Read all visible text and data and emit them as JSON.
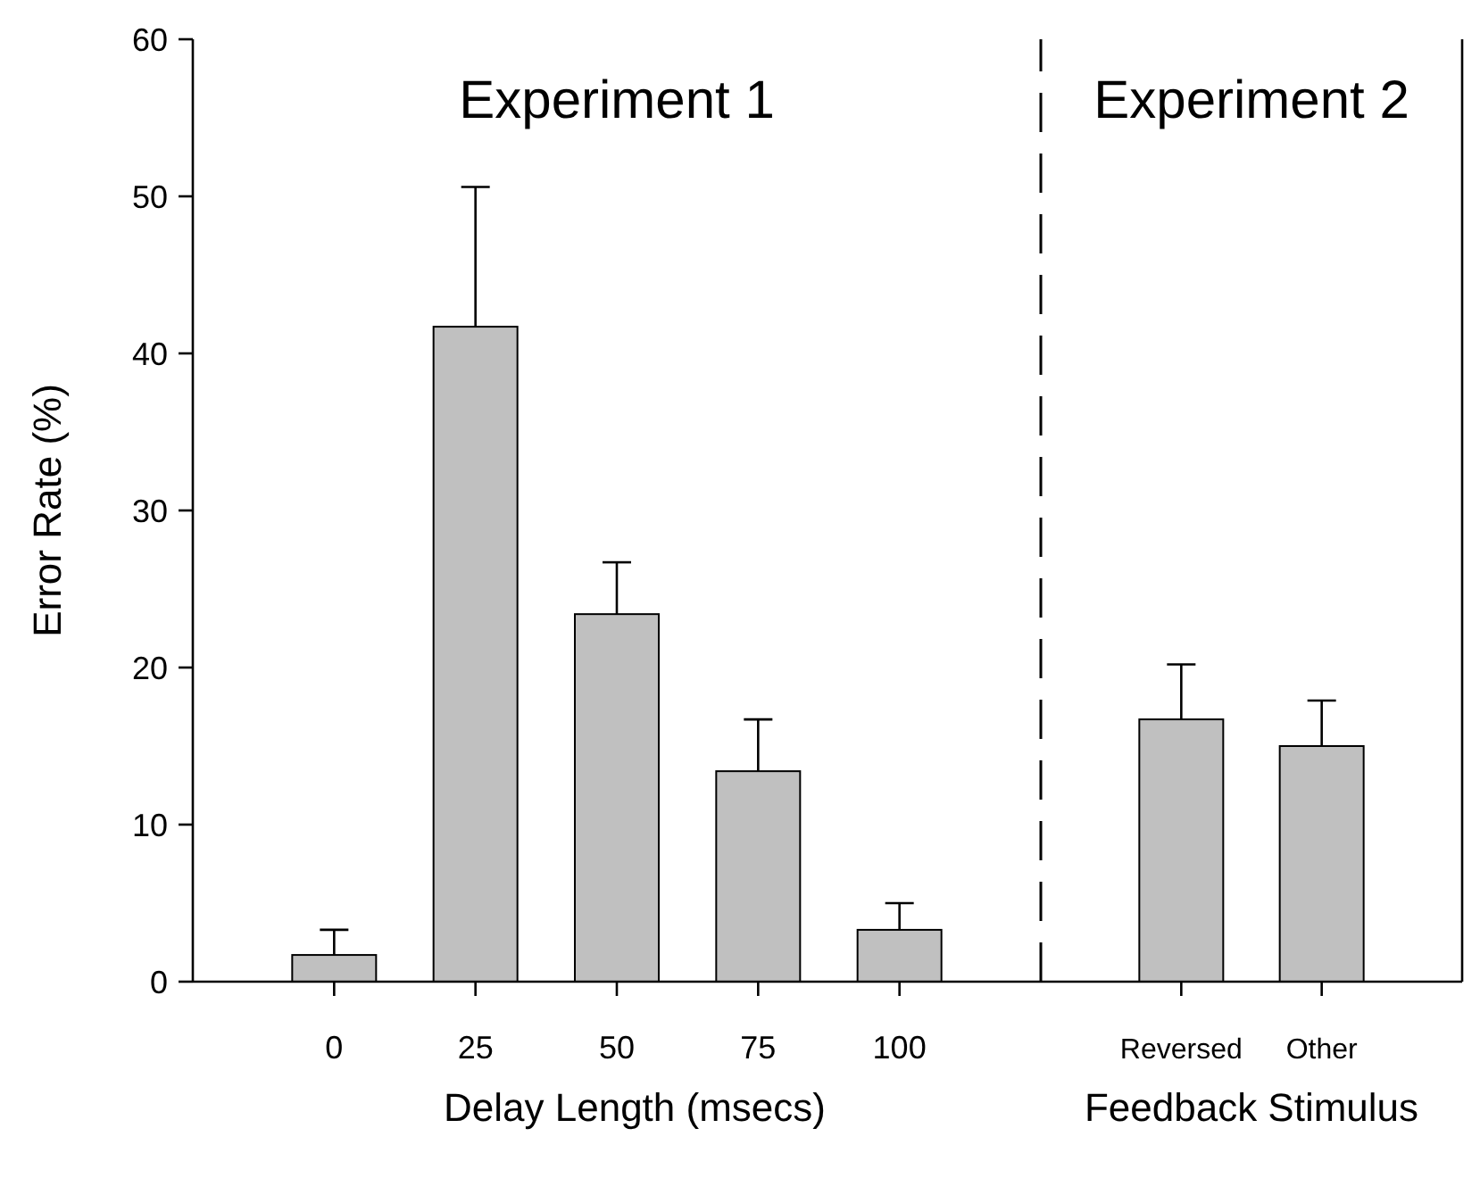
{
  "chart_data": [
    {
      "type": "bar",
      "title": "Experiment 1",
      "xlabel": "Delay Length (msecs)",
      "ylabel": "Error Rate (%)",
      "categories": [
        "0",
        "25",
        "50",
        "75",
        "100"
      ],
      "values": [
        1.7,
        41.7,
        23.4,
        13.4,
        3.3
      ],
      "errors": [
        [
          1.7,
          3.3
        ],
        [
          41.7,
          50.6
        ],
        [
          23.4,
          26.7
        ],
        [
          13.4,
          16.7
        ],
        [
          3.3,
          5.0
        ]
      ],
      "color": "#c0c0c0",
      "ylim": [
        0,
        60
      ],
      "yticks": [
        0,
        10,
        20,
        30,
        40,
        50,
        60
      ],
      "grid": false
    },
    {
      "type": "bar",
      "title": "Experiment 2",
      "xlabel": "Feedback Stimulus",
      "categories": [
        "Reversed",
        "Other"
      ],
      "values": [
        16.7,
        15.0
      ],
      "errors": [
        [
          16.7,
          20.2
        ],
        [
          15.0,
          17.9
        ]
      ],
      "color": "#c0c0c0",
      "ylim": [
        0,
        60
      ],
      "yticks": [
        0,
        10,
        20,
        30,
        40,
        50,
        60
      ],
      "tick_labels": "x",
      "grid": false
    }
  ]
}
